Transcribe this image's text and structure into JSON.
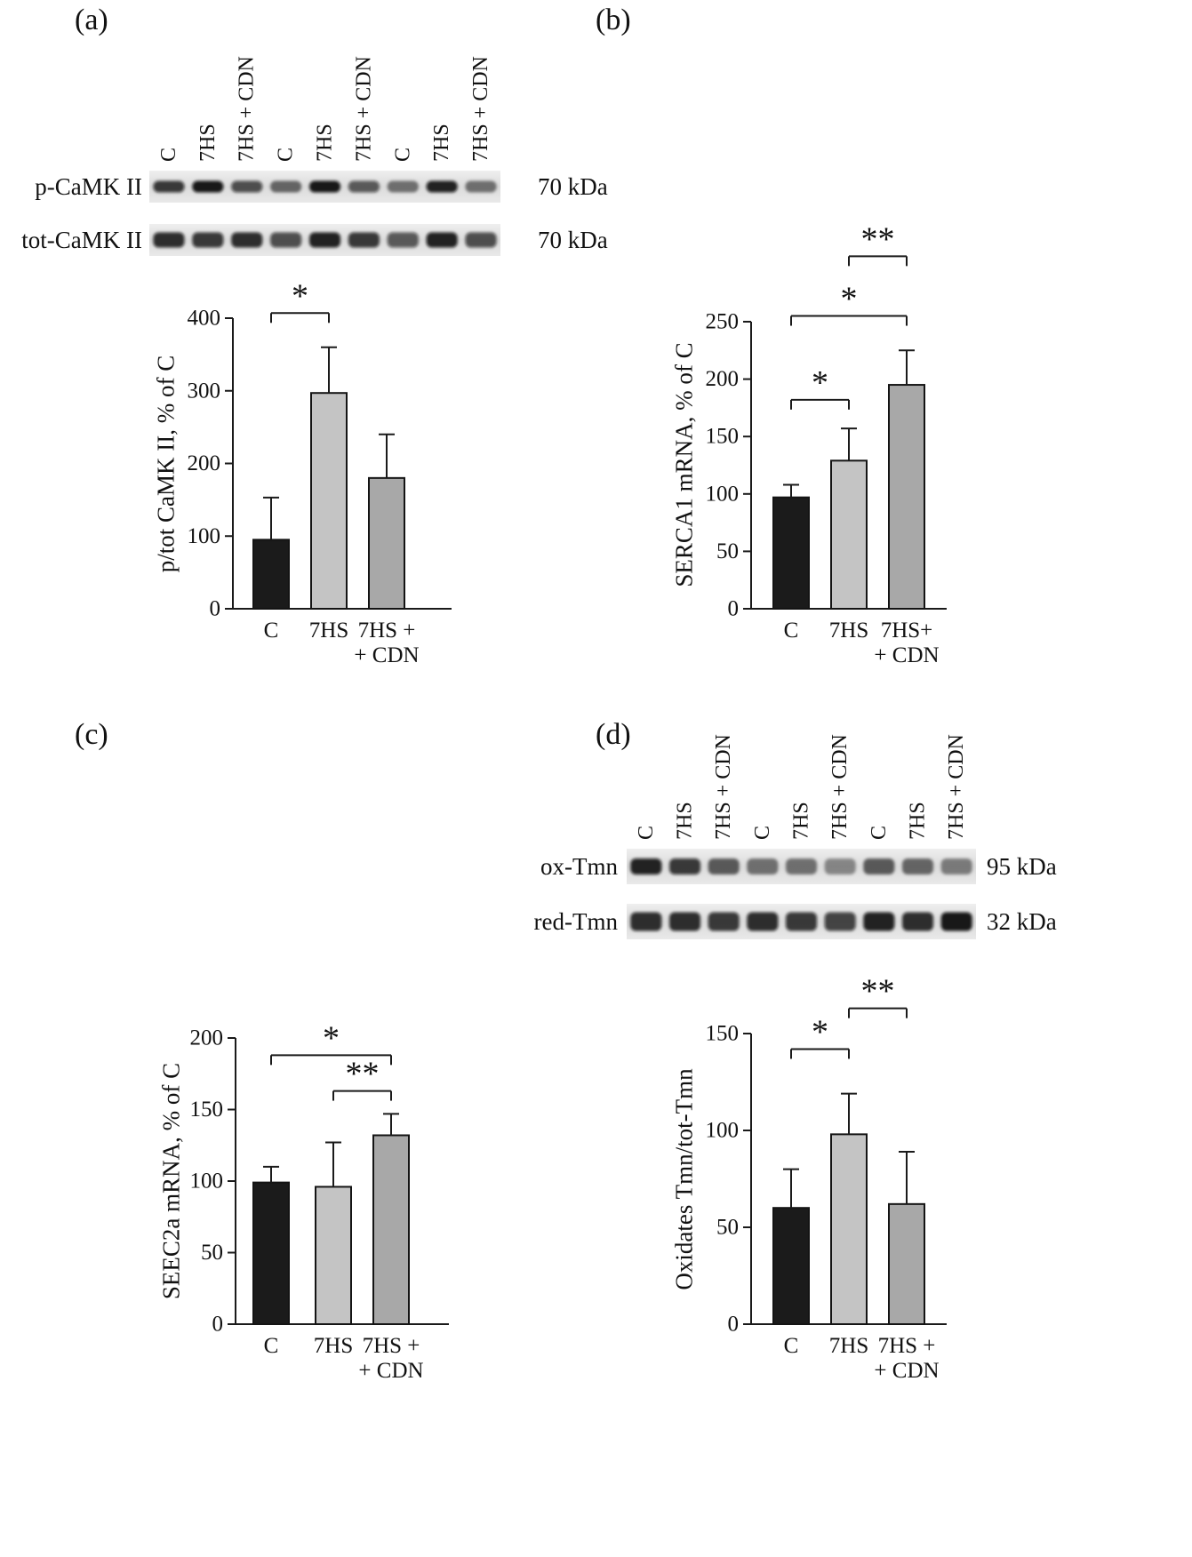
{
  "panels": {
    "a": {
      "label": "(a)"
    },
    "b": {
      "label": "(b)"
    },
    "c": {
      "label": "(c)"
    },
    "d": {
      "label": "(d)"
    }
  },
  "blots": [
    {
      "panel": "a",
      "lane_labels": [
        "C",
        "7HS",
        "7HS + CDN",
        "C",
        "7HS",
        "7HS + CDN",
        "C",
        "7HS",
        "7HS + CDN"
      ],
      "rows": [
        {
          "label": "p-CaMK II",
          "kda": "70 kDa",
          "bands": [
            0.8,
            0.95,
            0.7,
            0.55,
            0.95,
            0.65,
            0.5,
            0.9,
            0.5
          ]
        },
        {
          "label": "tot-CaMK II",
          "kda": "70 kDa",
          "bands": [
            0.85,
            0.8,
            0.85,
            0.7,
            0.9,
            0.8,
            0.65,
            0.9,
            0.7
          ]
        }
      ]
    },
    {
      "panel": "d",
      "lane_labels": [
        "C",
        "7HS",
        "7HS + CDN",
        "C",
        "7HS",
        "7HS + CDN",
        "C",
        "7HS",
        "7HS + CDN"
      ],
      "rows": [
        {
          "label": "ox-Tmn",
          "kda": "95 kDa",
          "bands": [
            0.9,
            0.8,
            0.6,
            0.5,
            0.5,
            0.4,
            0.6,
            0.55,
            0.45
          ]
        },
        {
          "label": "red-Tmn",
          "kda": "32 kDa",
          "bands": [
            0.85,
            0.85,
            0.8,
            0.85,
            0.8,
            0.75,
            0.9,
            0.85,
            0.95
          ]
        }
      ]
    }
  ],
  "chart_data": [
    {
      "panel": "a",
      "type": "bar",
      "title": "",
      "xlabel": "",
      "ylabel": "p/tot CaMK II, % of C",
      "ylim": [
        0,
        400
      ],
      "yticks": [
        0,
        100,
        200,
        300,
        400
      ],
      "categories": [
        "C",
        "7HS",
        "7HS + CDN"
      ],
      "category_lines": [
        [
          "C"
        ],
        [
          "7HS"
        ],
        [
          "7HS +",
          "+ CDN"
        ]
      ],
      "values": [
        95,
        297,
        180
      ],
      "errors_upper": [
        58,
        63,
        60
      ],
      "bar_colors": [
        "#1b1b1b",
        "#c4c4c4",
        "#a8a8a8"
      ],
      "significance": [
        {
          "pair": [
            "C",
            "7HS"
          ],
          "i1": 0,
          "i2": 1,
          "label": "*",
          "y": 407
        }
      ]
    },
    {
      "panel": "b",
      "type": "bar",
      "title": "",
      "xlabel": "",
      "ylabel": "SERCA1 mRNA, % of C",
      "ylim": [
        0,
        250
      ],
      "yticks": [
        0,
        50,
        100,
        150,
        200,
        250
      ],
      "categories": [
        "C",
        "7HS",
        "7HS+ + CDN"
      ],
      "category_lines": [
        [
          "C"
        ],
        [
          "7HS"
        ],
        [
          "7HS+",
          "+ CDN"
        ]
      ],
      "values": [
        97,
        129,
        195
      ],
      "errors_upper": [
        11,
        28,
        30
      ],
      "bar_colors": [
        "#1b1b1b",
        "#c4c4c4",
        "#a8a8a8"
      ],
      "significance": [
        {
          "pair": [
            "C",
            "7HS"
          ],
          "i1": 0,
          "i2": 1,
          "label": "*",
          "y": 182
        },
        {
          "pair": [
            "C",
            "7HS+ + CDN"
          ],
          "i1": 0,
          "i2": 2,
          "label": "*",
          "y": 255
        },
        {
          "pair": [
            "7HS",
            "7HS+ + CDN"
          ],
          "i1": 1,
          "i2": 2,
          "label": "**",
          "y": 307
        }
      ]
    },
    {
      "panel": "c",
      "type": "bar",
      "title": "",
      "xlabel": "",
      "ylabel": "SEEC2a mRNA, % of C",
      "ylim": [
        0,
        200
      ],
      "yticks": [
        0,
        50,
        100,
        150,
        200
      ],
      "categories": [
        "C",
        "7HS",
        "7HS + CDN"
      ],
      "category_lines": [
        [
          "C"
        ],
        [
          "7HS"
        ],
        [
          "7HS +",
          "+ CDN"
        ]
      ],
      "values": [
        99,
        96,
        132
      ],
      "errors_upper": [
        11,
        31,
        15
      ],
      "bar_colors": [
        "#1b1b1b",
        "#c4c4c4",
        "#a8a8a8"
      ],
      "significance": [
        {
          "pair": [
            "C",
            "7HS + CDN"
          ],
          "i1": 0,
          "i2": 2,
          "label": "*",
          "y": 188
        },
        {
          "pair": [
            "7HS",
            "7HS + CDN"
          ],
          "i1": 1,
          "i2": 2,
          "label": "**",
          "y": 163
        }
      ]
    },
    {
      "panel": "d",
      "type": "bar",
      "title": "",
      "xlabel": "",
      "ylabel": "Oxidates Tmn/tot-Tmn",
      "ylim": [
        0,
        150
      ],
      "yticks": [
        0,
        50,
        100,
        150
      ],
      "categories": [
        "C",
        "7HS",
        "7HS + CDN"
      ],
      "category_lines": [
        [
          "C"
        ],
        [
          "7HS"
        ],
        [
          "7HS +",
          "+ CDN"
        ]
      ],
      "values": [
        60,
        98,
        62
      ],
      "errors_upper": [
        20,
        21,
        27
      ],
      "bar_colors": [
        "#1b1b1b",
        "#c4c4c4",
        "#a8a8a8"
      ],
      "significance": [
        {
          "pair": [
            "C",
            "7HS"
          ],
          "i1": 0,
          "i2": 1,
          "label": "*",
          "y": 142
        },
        {
          "pair": [
            "7HS",
            "7HS + CDN"
          ],
          "i1": 1,
          "i2": 2,
          "label": "**",
          "y": 163
        }
      ]
    }
  ]
}
